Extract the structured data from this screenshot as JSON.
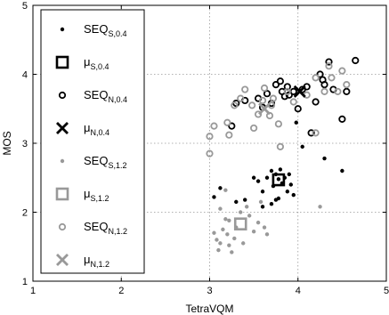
{
  "chart_data": {
    "type": "scatter",
    "title": "",
    "xlabel": "TetraVQM",
    "ylabel": "MOS",
    "xlim": [
      1,
      5
    ],
    "ylim": [
      1,
      5
    ],
    "xticks": [
      1,
      2,
      3,
      4,
      5
    ],
    "yticks": [
      1,
      2,
      3,
      4,
      5
    ],
    "grid": true,
    "legend_position": "upper-left",
    "series": [
      {
        "name": "SEQ",
        "subscript": "S,0.4",
        "marker": "dot",
        "color": "#000000",
        "points": [
          [
            3.05,
            2.22
          ],
          [
            3.12,
            2.35
          ],
          [
            3.5,
            2.5
          ],
          [
            3.55,
            2.45
          ],
          [
            3.6,
            2.3
          ],
          [
            3.65,
            2.5
          ],
          [
            3.7,
            2.6
          ],
          [
            3.72,
            2.38
          ],
          [
            3.75,
            2.55
          ],
          [
            3.78,
            2.48
          ],
          [
            3.8,
            2.62
          ],
          [
            3.82,
            2.42
          ],
          [
            3.85,
            2.5
          ],
          [
            3.88,
            2.3
          ],
          [
            3.9,
            2.55
          ],
          [
            3.7,
            2.12
          ],
          [
            3.6,
            2.08
          ],
          [
            3.78,
            2.2
          ],
          [
            3.92,
            2.4
          ],
          [
            3.95,
            2.25
          ],
          [
            3.4,
            2.18
          ],
          [
            3.3,
            2.15
          ],
          [
            3.75,
            2.18
          ],
          [
            3.98,
            3.3
          ],
          [
            4.05,
            2.95
          ],
          [
            4.5,
            2.6
          ],
          [
            4.3,
            2.78
          ]
        ]
      },
      {
        "name": "μ",
        "subscript": "S,0.4",
        "marker": "square",
        "color": "#000000",
        "points": [
          [
            3.78,
            2.47
          ]
        ]
      },
      {
        "name": "SEQ",
        "subscript": "N,0.4",
        "marker": "circle",
        "color": "#000000",
        "points": [
          [
            3.25,
            3.25
          ],
          [
            3.3,
            3.58
          ],
          [
            3.55,
            3.65
          ],
          [
            3.6,
            3.52
          ],
          [
            3.65,
            3.72
          ],
          [
            3.7,
            3.58
          ],
          [
            3.75,
            3.85
          ],
          [
            3.8,
            3.9
          ],
          [
            3.82,
            3.75
          ],
          [
            3.85,
            3.68
          ],
          [
            3.88,
            3.82
          ],
          [
            3.9,
            3.7
          ],
          [
            3.95,
            3.75
          ],
          [
            4.0,
            3.5
          ],
          [
            4.05,
            3.78
          ],
          [
            4.1,
            3.82
          ],
          [
            4.2,
            3.6
          ],
          [
            4.25,
            4.0
          ],
          [
            4.28,
            3.92
          ],
          [
            4.3,
            3.85
          ],
          [
            4.35,
            4.18
          ],
          [
            4.4,
            3.78
          ],
          [
            4.55,
            3.75
          ],
          [
            4.65,
            4.2
          ],
          [
            4.5,
            3.35
          ],
          [
            4.15,
            3.15
          ],
          [
            3.4,
            3.62
          ]
        ]
      },
      {
        "name": "μ",
        "subscript": "N,0.4",
        "marker": "x",
        "color": "#000000",
        "points": [
          [
            4.02,
            3.75
          ]
        ]
      },
      {
        "name": "SEQ",
        "subscript": "S,1.2",
        "marker": "dot",
        "color": "#999999",
        "points": [
          [
            3.05,
            1.7
          ],
          [
            3.08,
            1.6
          ],
          [
            3.1,
            1.45
          ],
          [
            3.12,
            1.55
          ],
          [
            3.15,
            1.75
          ],
          [
            3.18,
            1.9
          ],
          [
            3.2,
            1.68
          ],
          [
            3.22,
            1.52
          ],
          [
            3.25,
            1.42
          ],
          [
            3.28,
            1.62
          ],
          [
            3.3,
            1.78
          ],
          [
            3.35,
            2.0
          ],
          [
            3.38,
            1.55
          ],
          [
            3.42,
            2.08
          ],
          [
            3.45,
            1.95
          ],
          [
            3.5,
            1.72
          ],
          [
            3.55,
            1.85
          ],
          [
            3.58,
            2.15
          ],
          [
            3.62,
            1.78
          ],
          [
            3.65,
            1.68
          ],
          [
            3.12,
            2.05
          ],
          [
            3.18,
            2.32
          ],
          [
            4.25,
            2.08
          ],
          [
            3.22,
            1.88
          ]
        ]
      },
      {
        "name": "μ",
        "subscript": "S,1.2",
        "marker": "square",
        "color": "#999999",
        "points": [
          [
            3.35,
            1.83
          ]
        ]
      },
      {
        "name": "SEQ",
        "subscript": "N,1.2",
        "marker": "circle",
        "color": "#999999",
        "points": [
          [
            3.0,
            2.85
          ],
          [
            3.05,
            3.25
          ],
          [
            3.2,
            3.3
          ],
          [
            3.22,
            3.12
          ],
          [
            3.28,
            3.55
          ],
          [
            3.35,
            3.65
          ],
          [
            3.4,
            3.78
          ],
          [
            3.48,
            3.55
          ],
          [
            3.5,
            3.22
          ],
          [
            3.55,
            3.42
          ],
          [
            3.6,
            3.62
          ],
          [
            3.62,
            3.8
          ],
          [
            3.68,
            3.4
          ],
          [
            3.7,
            3.55
          ],
          [
            3.72,
            3.65
          ],
          [
            3.78,
            3.28
          ],
          [
            3.8,
            2.95
          ],
          [
            3.88,
            3.75
          ],
          [
            3.95,
            3.6
          ],
          [
            4.1,
            3.7
          ],
          [
            4.2,
            3.15
          ],
          [
            4.3,
            3.75
          ],
          [
            4.38,
            3.95
          ],
          [
            4.45,
            3.75
          ],
          [
            4.5,
            4.05
          ],
          [
            4.55,
            3.85
          ],
          [
            4.35,
            4.12
          ],
          [
            4.2,
            3.95
          ],
          [
            3.0,
            3.1
          ]
        ]
      },
      {
        "name": "μ",
        "subscript": "N,1.2",
        "marker": "x",
        "color": "#999999",
        "points": [
          [
            3.62,
            3.5
          ]
        ]
      }
    ]
  }
}
